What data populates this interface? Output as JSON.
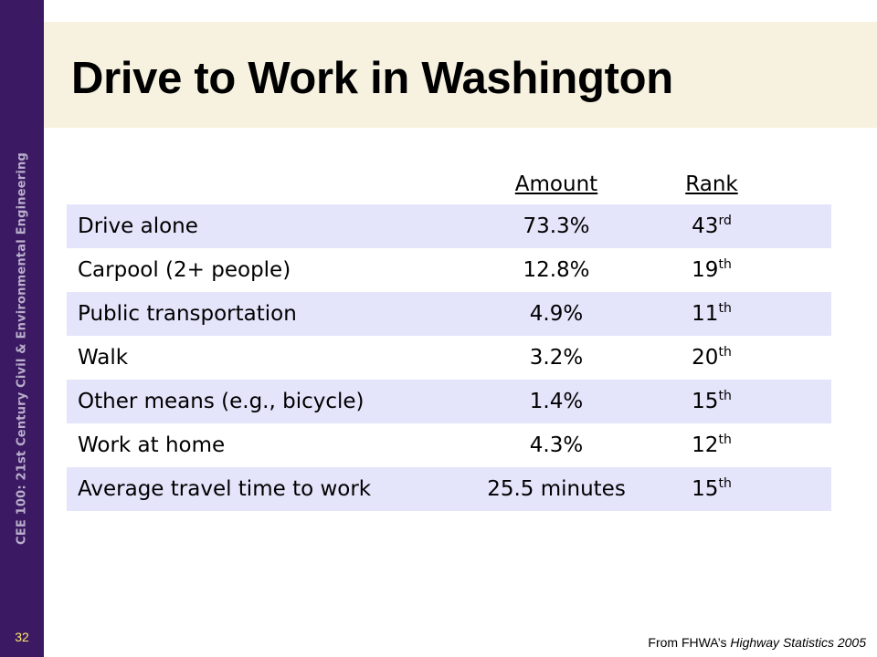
{
  "sidebar": {
    "vertical_text": "CEE 100: 21st Century Civil & Environmental Engineering",
    "slide_number": "32"
  },
  "title": "Drive to Work in Washington",
  "table": {
    "headers": {
      "label": "",
      "amount": "Amount",
      "rank": "Rank"
    },
    "rows": [
      {
        "label": "Drive alone",
        "amount": "73.3%",
        "rank": "43",
        "rank_suffix": "rd"
      },
      {
        "label": "Carpool (2+ people)",
        "amount": "12.8%",
        "rank": "19",
        "rank_suffix": "th"
      },
      {
        "label": "Public transportation",
        "amount": "4.9%",
        "rank": "11",
        "rank_suffix": "th"
      },
      {
        "label": "Walk",
        "amount": "3.2%",
        "rank": "20",
        "rank_suffix": "th"
      },
      {
        "label": "Other means (e.g., bicycle)",
        "amount": "1.4%",
        "rank": "15",
        "rank_suffix": "th"
      },
      {
        "label": "Work at home",
        "amount": "4.3%",
        "rank": "12",
        "rank_suffix": "th"
      },
      {
        "label": "Average travel time to work",
        "amount": "25.5 minutes",
        "rank": "15",
        "rank_suffix": "th"
      }
    ]
  },
  "source": {
    "prefix": "From FHWA’s ",
    "publication": "Highway Statistics 2005"
  },
  "colors": {
    "sidebar": "#3b1a63",
    "title_band": "#f7f2df",
    "row_shade": "#e4e4fb",
    "slide_number": "#ffe96a"
  }
}
